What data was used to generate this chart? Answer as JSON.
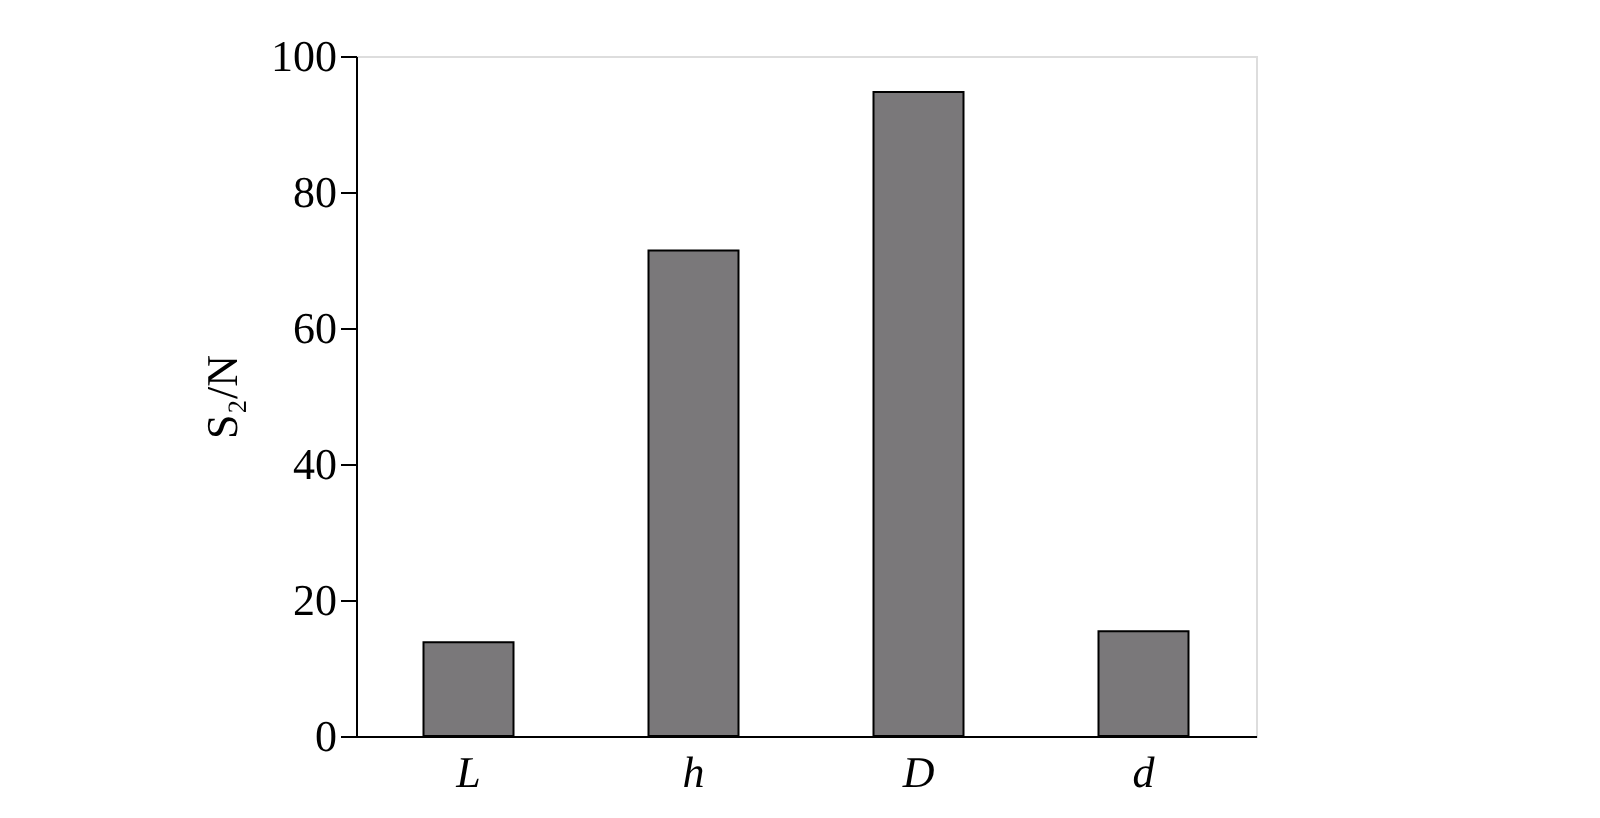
{
  "chart_data": {
    "type": "bar",
    "ylabel": "S₂/N",
    "categories": [
      "L",
      "h",
      "D",
      "d"
    ],
    "values": [
      13.8,
      71.4,
      94.7,
      15.4
    ],
    "color": "#7a787a",
    "ylim": [
      0,
      100
    ],
    "yticks": [
      0,
      20,
      40,
      60,
      80,
      100
    ],
    "grid": false
  }
}
